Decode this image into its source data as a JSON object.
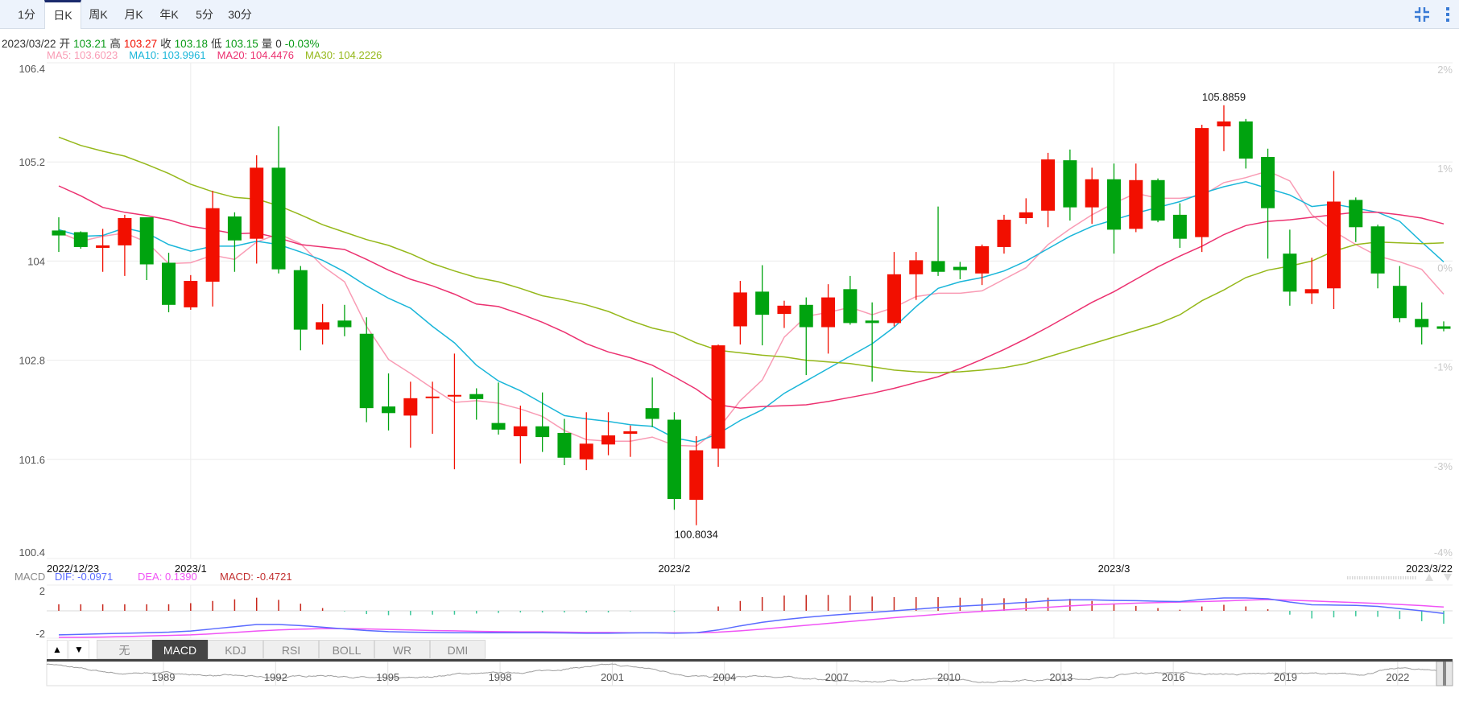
{
  "toolbar": {
    "tabs": [
      "1分",
      "日K",
      "周K",
      "月K",
      "年K",
      "5分",
      "30分"
    ],
    "active_tab": 1,
    "icons": [
      "compress-icon",
      "more-vertical-icon"
    ],
    "accent": "#3a7bd5"
  },
  "info": {
    "date": "2023/03/22",
    "open_label": "开",
    "open": "103.21",
    "high_label": "高",
    "high": "103.27",
    "close_label": "收",
    "close": "103.18",
    "low_label": "低",
    "low": "103.15",
    "volume_label": "量",
    "volume": "0",
    "change": "-0.03%"
  },
  "ma_legend": [
    {
      "label": "MA5: 103.6023",
      "color": "#f99bb4"
    },
    {
      "label": "MA10: 103.9961",
      "color": "#1ab6d9"
    },
    {
      "label": "MA20: 104.4476",
      "color": "#ec3170"
    },
    {
      "label": "MA30: 104.2226",
      "color": "#95b81a"
    }
  ],
  "chart_data": [
    {
      "type": "candlestick",
      "title": "日K",
      "ylim": [
        100.4,
        106.4
      ],
      "y_ticks": [
        "106.4",
        "105.2",
        "104",
        "102.8",
        "101.6",
        "100.4"
      ],
      "y_tick_values": [
        106.4,
        105.2,
        104,
        102.8,
        101.6,
        100.4
      ],
      "pct_ticks": [
        "2%",
        "1%",
        "0%",
        "-1%",
        "-3%",
        "-4%"
      ],
      "x_labels": [
        {
          "index": 0,
          "label": "2022/12/23"
        },
        {
          "index": 6,
          "label": "2023/1"
        },
        {
          "index": 28,
          "label": "2023/2"
        },
        {
          "index": 48,
          "label": "2023/3"
        },
        {
          "index": 63,
          "label": "2023/3/22"
        }
      ],
      "grid": true,
      "up_color": "#f20f00",
      "down_color": "#00a30f",
      "max_label": {
        "index": 53,
        "value": "105.8859"
      },
      "min_label": {
        "index": 29,
        "value": "100.8034"
      },
      "ohlc": [
        [
          104.37,
          104.53,
          104.11,
          104.31
        ],
        [
          104.35,
          104.36,
          104.15,
          104.17
        ],
        [
          104.16,
          104.39,
          103.87,
          104.19
        ],
        [
          104.19,
          104.56,
          103.82,
          104.52
        ],
        [
          104.53,
          104.53,
          103.77,
          103.96
        ],
        [
          103.98,
          104.1,
          103.38,
          103.47
        ],
        [
          103.44,
          103.83,
          103.41,
          103.76
        ],
        [
          103.75,
          104.85,
          103.45,
          104.64
        ],
        [
          104.54,
          104.59,
          103.87,
          104.25
        ],
        [
          104.27,
          105.28,
          103.97,
          105.13
        ],
        [
          105.13,
          105.63,
          103.85,
          103.9
        ],
        [
          103.89,
          103.94,
          102.92,
          103.17
        ],
        [
          103.17,
          103.48,
          102.99,
          103.26
        ],
        [
          103.28,
          103.47,
          103.09,
          103.2
        ],
        [
          103.12,
          103.32,
          102.05,
          102.22
        ],
        [
          102.24,
          102.64,
          101.95,
          102.16
        ],
        [
          102.13,
          102.54,
          101.74,
          102.34
        ],
        [
          102.35,
          102.54,
          101.91,
          102.36
        ],
        [
          102.36,
          102.88,
          101.48,
          102.38
        ],
        [
          102.39,
          102.46,
          102.08,
          102.33
        ],
        [
          102.04,
          102.53,
          101.9,
          101.96
        ],
        [
          101.88,
          102.25,
          101.55,
          102.0
        ],
        [
          102.0,
          102.41,
          101.69,
          101.87
        ],
        [
          101.92,
          102.09,
          101.53,
          101.62
        ],
        [
          101.6,
          102.17,
          101.47,
          101.79
        ],
        [
          101.78,
          102.17,
          101.65,
          101.89
        ],
        [
          101.91,
          102.01,
          101.63,
          101.94
        ],
        [
          102.22,
          102.59,
          101.99,
          102.09
        ],
        [
          102.08,
          102.17,
          100.99,
          101.12
        ],
        [
          101.11,
          101.88,
          100.8034,
          101.71
        ],
        [
          101.73,
          102.99,
          101.51,
          102.98
        ],
        [
          103.21,
          103.76,
          102.99,
          103.62
        ],
        [
          103.63,
          103.95,
          102.98,
          103.35
        ],
        [
          103.36,
          103.52,
          103.19,
          103.46
        ],
        [
          103.47,
          103.56,
          102.62,
          103.2
        ],
        [
          103.2,
          103.72,
          102.88,
          103.56
        ],
        [
          103.66,
          103.82,
          103.23,
          103.25
        ],
        [
          103.28,
          103.5,
          102.54,
          103.25
        ],
        [
          103.25,
          104.11,
          103.21,
          103.84
        ],
        [
          103.84,
          104.11,
          103.53,
          104.01
        ],
        [
          104.0,
          104.66,
          103.82,
          103.87
        ],
        [
          103.93,
          103.99,
          103.78,
          103.89
        ],
        [
          103.85,
          104.2,
          103.71,
          104.18
        ],
        [
          104.17,
          104.56,
          104.09,
          104.5
        ],
        [
          104.52,
          104.76,
          104.45,
          104.59
        ],
        [
          104.61,
          105.31,
          104.41,
          105.23
        ],
        [
          105.22,
          105.35,
          104.49,
          104.65
        ],
        [
          104.65,
          105.13,
          104.45,
          104.99
        ],
        [
          104.99,
          105.18,
          104.09,
          104.38
        ],
        [
          104.39,
          105.18,
          104.35,
          104.98
        ],
        [
          104.98,
          105.0,
          104.47,
          104.49
        ],
        [
          104.56,
          104.7,
          104.16,
          104.27
        ],
        [
          104.29,
          105.65,
          104.11,
          105.61
        ],
        [
          105.63,
          105.8859,
          105.33,
          105.69
        ],
        [
          105.69,
          105.72,
          105.12,
          105.24
        ],
        [
          105.26,
          105.36,
          104.03,
          104.64
        ],
        [
          104.09,
          104.38,
          103.46,
          103.63
        ],
        [
          103.61,
          104.04,
          103.48,
          103.66
        ],
        [
          103.67,
          105.09,
          103.42,
          104.72
        ],
        [
          104.74,
          104.77,
          104.23,
          104.41
        ],
        [
          104.42,
          104.44,
          103.67,
          103.85
        ],
        [
          103.7,
          103.94,
          103.26,
          103.31
        ],
        [
          103.3,
          103.5,
          102.99,
          103.2
        ],
        [
          103.21,
          103.27,
          103.15,
          103.18
        ]
      ],
      "series": [
        {
          "name": "MA5",
          "color": "#f99bb4",
          "values": [
            104.35,
            104.24,
            104.3,
            104.34,
            104.23,
            103.97,
            103.98,
            104.07,
            104.02,
            104.23,
            104.33,
            104.21,
            103.94,
            103.75,
            103.21,
            102.81,
            102.64,
            102.46,
            102.29,
            102.31,
            102.28,
            102.21,
            102.12,
            101.95,
            101.84,
            101.82,
            101.82,
            101.87,
            101.77,
            101.76,
            101.97,
            102.31,
            102.56,
            103.08,
            103.33,
            103.38,
            103.44,
            103.35,
            103.44,
            103.57,
            103.61,
            103.61,
            103.64,
            103.78,
            103.92,
            104.2,
            104.39,
            104.56,
            104.7,
            104.82,
            104.76,
            104.76,
            104.79,
            104.95,
            105.01,
            105.09,
            104.97,
            104.56,
            104.36,
            104.2,
            104.06,
            103.99,
            103.9,
            103.6
          ]
        },
        {
          "name": "MA10",
          "color": "#1ab6d9",
          "values": [
            104.38,
            104.3,
            104.31,
            104.4,
            104.34,
            104.2,
            104.12,
            104.18,
            104.18,
            104.24,
            104.2,
            104.11,
            104.01,
            103.87,
            103.7,
            103.55,
            103.43,
            103.21,
            103.01,
            102.74,
            102.55,
            102.43,
            102.28,
            102.13,
            102.09,
            102.06,
            102.02,
            102.0,
            101.86,
            101.81,
            101.91,
            102.07,
            102.2,
            102.4,
            102.55,
            102.7,
            102.85,
            103.0,
            103.2,
            103.45,
            103.67,
            103.75,
            103.8,
            103.88,
            104.0,
            104.15,
            104.3,
            104.42,
            104.5,
            104.58,
            104.65,
            104.72,
            104.82,
            104.9,
            104.96,
            104.88,
            104.8,
            104.66,
            104.69,
            104.64,
            104.59,
            104.48,
            104.23,
            103.99
          ]
        },
        {
          "name": "MA20",
          "color": "#ec3170",
          "values": [
            104.91,
            104.79,
            104.65,
            104.59,
            104.55,
            104.5,
            104.42,
            104.38,
            104.33,
            104.34,
            104.28,
            104.2,
            104.17,
            104.14,
            104.02,
            103.89,
            103.78,
            103.7,
            103.6,
            103.48,
            103.45,
            103.36,
            103.26,
            103.14,
            103.0,
            102.9,
            102.83,
            102.74,
            102.6,
            102.45,
            102.26,
            102.22,
            102.24,
            102.25,
            102.26,
            102.3,
            102.35,
            102.4,
            102.46,
            102.53,
            102.6,
            102.7,
            102.81,
            102.93,
            103.06,
            103.2,
            103.35,
            103.5,
            103.63,
            103.78,
            103.93,
            104.06,
            104.18,
            104.32,
            104.43,
            104.48,
            104.5,
            104.53,
            104.56,
            104.59,
            104.59,
            104.56,
            104.52,
            104.45
          ]
        },
        {
          "name": "MA30",
          "color": "#95b81a",
          "values": [
            105.5,
            105.4,
            105.33,
            105.27,
            105.17,
            105.06,
            104.93,
            104.84,
            104.77,
            104.75,
            104.67,
            104.56,
            104.44,
            104.35,
            104.26,
            104.19,
            104.09,
            103.97,
            103.88,
            103.8,
            103.75,
            103.67,
            103.58,
            103.53,
            103.47,
            103.39,
            103.28,
            103.19,
            103.13,
            103.01,
            102.92,
            102.89,
            102.86,
            102.84,
            102.8,
            102.78,
            102.76,
            102.72,
            102.68,
            102.66,
            102.65,
            102.66,
            102.68,
            102.71,
            102.76,
            102.84,
            102.92,
            103.0,
            103.08,
            103.16,
            103.24,
            103.35,
            103.52,
            103.65,
            103.8,
            103.89,
            103.94,
            104.0,
            104.12,
            104.2,
            104.23,
            104.22,
            104.21,
            104.22
          ]
        }
      ]
    },
    {
      "type": "line",
      "title": "MACD",
      "legend": {
        "name": "MACD",
        "dif": "DIF: -0.0971",
        "dea": "DEA: 0.1390",
        "macd": "MACD: -0.4721"
      },
      "y_ticks": [
        "2",
        "-2"
      ],
      "colors": {
        "dif": "#5a6bff",
        "dea": "#f054f5",
        "macd": "#c23030",
        "hist_up": "#c8261b",
        "hist_down": "#3cc79a"
      },
      "dif": [
        -0.88,
        -0.86,
        -0.84,
        -0.82,
        -0.8,
        -0.78,
        -0.74,
        -0.66,
        -0.58,
        -0.5,
        -0.5,
        -0.54,
        -0.6,
        -0.66,
        -0.72,
        -0.76,
        -0.78,
        -0.79,
        -0.8,
        -0.8,
        -0.8,
        -0.8,
        -0.8,
        -0.81,
        -0.82,
        -0.82,
        -0.81,
        -0.8,
        -0.82,
        -0.8,
        -0.7,
        -0.55,
        -0.42,
        -0.32,
        -0.24,
        -0.17,
        -0.11,
        -0.06,
        0.0,
        0.06,
        0.12,
        0.17,
        0.21,
        0.26,
        0.31,
        0.37,
        0.4,
        0.4,
        0.38,
        0.37,
        0.35,
        0.34,
        0.42,
        0.47,
        0.47,
        0.44,
        0.32,
        0.22,
        0.21,
        0.2,
        0.16,
        0.08,
        0.0,
        -0.0971
      ],
      "dea": [
        -1.0,
        -0.98,
        -0.96,
        -0.94,
        -0.92,
        -0.9,
        -0.88,
        -0.84,
        -0.79,
        -0.74,
        -0.7,
        -0.67,
        -0.65,
        -0.65,
        -0.66,
        -0.68,
        -0.7,
        -0.72,
        -0.73,
        -0.75,
        -0.76,
        -0.77,
        -0.77,
        -0.78,
        -0.79,
        -0.79,
        -0.8,
        -0.8,
        -0.8,
        -0.8,
        -0.78,
        -0.73,
        -0.67,
        -0.6,
        -0.53,
        -0.46,
        -0.39,
        -0.32,
        -0.25,
        -0.19,
        -0.13,
        -0.07,
        -0.02,
        0.03,
        0.08,
        0.13,
        0.18,
        0.22,
        0.25,
        0.28,
        0.3,
        0.32,
        0.34,
        0.36,
        0.39,
        0.41,
        0.39,
        0.36,
        0.33,
        0.3,
        0.27,
        0.23,
        0.19,
        0.139
      ]
    },
    {
      "type": "line",
      "title": "navigator",
      "x_labels": [
        "1989",
        "1992",
        "1995",
        "1998",
        "2001",
        "2004",
        "2007",
        "2010",
        "2013",
        "2016",
        "2019",
        "2022"
      ],
      "years": [
        1986,
        1987,
        1988,
        1989,
        1990,
        1991,
        1992,
        1993,
        1994,
        1995,
        1996,
        1997,
        1998,
        1999,
        2000,
        2001,
        2002,
        2003,
        2004,
        2005,
        2006,
        2007,
        2008,
        2009,
        2010,
        2011,
        2012,
        2013,
        2014,
        2015,
        2016,
        2017,
        2018,
        2019,
        2020,
        2021,
        2022,
        2023.2
      ],
      "values": [
        118,
        104,
        94,
        98,
        91,
        90,
        84,
        91,
        88,
        82,
        86,
        95,
        96,
        100,
        109,
        116,
        107,
        91,
        84,
        89,
        85,
        78,
        76,
        80,
        81,
        75,
        80,
        80,
        84,
        96,
        98,
        94,
        93,
        97,
        95,
        92,
        108,
        103
      ],
      "color": "#9e9e9e"
    }
  ],
  "indicator_tabs": {
    "arrows": [
      "▲",
      "▼"
    ],
    "tabs": [
      "无",
      "MACD",
      "KDJ",
      "RSI",
      "BOLL",
      "WR",
      "DMI"
    ],
    "active": 1
  }
}
